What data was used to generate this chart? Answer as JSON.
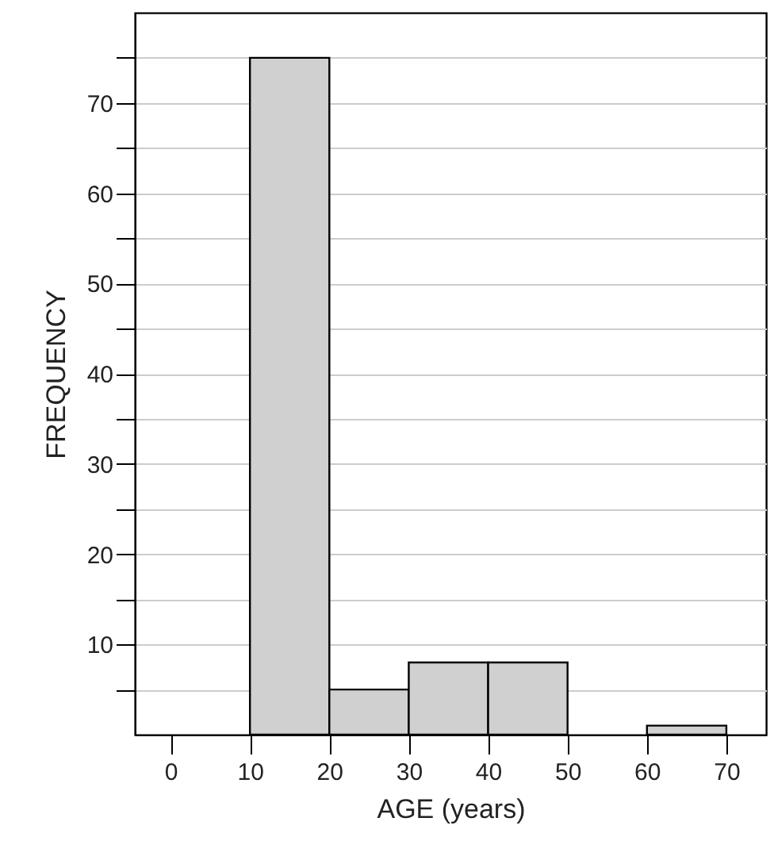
{
  "chart_data": {
    "type": "histogram",
    "xlabel": "AGE (years)",
    "ylabel": "FREQUENCY",
    "bins": [
      10,
      20,
      30,
      40,
      50,
      60,
      70
    ],
    "values": [
      75,
      5,
      8,
      8,
      0,
      1
    ],
    "color": "#d0d0d0",
    "xlim": [
      -4.5,
      75
    ],
    "xticks": [
      0,
      10,
      20,
      30,
      40,
      50,
      60,
      70
    ],
    "ylim": [
      0,
      80
    ],
    "yticks": [
      {
        "value": 5,
        "label": null
      },
      10,
      {
        "value": 15,
        "label": null
      },
      20,
      {
        "value": 25,
        "label": null
      },
      30,
      {
        "value": 35,
        "label": null
      },
      40,
      {
        "value": 45,
        "label": null
      },
      50,
      {
        "value": 55,
        "label": null
      },
      60,
      {
        "value": 65,
        "label": null
      },
      70,
      {
        "value": 75,
        "label": null
      }
    ],
    "grid": "y"
  }
}
